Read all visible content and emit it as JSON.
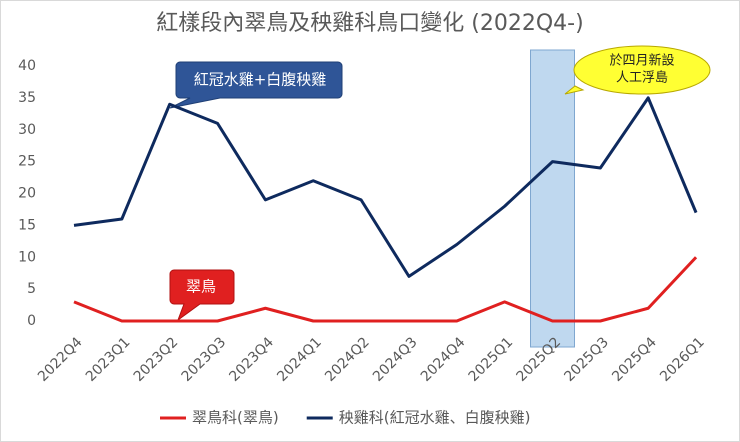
{
  "chart_data": {
    "type": "line",
    "title": "紅樣段內翠鳥及秧雞科鳥口變化 (2022Q4-)",
    "categories": [
      "2022Q4",
      "2023Q1",
      "2023Q2",
      "2023Q3",
      "2023Q4",
      "2024Q1",
      "2024Q2",
      "2024Q3",
      "2024Q4",
      "2025Q1",
      "2025Q2",
      "2025Q3",
      "2025Q4",
      "2026Q1"
    ],
    "series": [
      {
        "name": "翠鳥科(翠鳥)",
        "color": "#e02020",
        "values": [
          3,
          0,
          0,
          0,
          2,
          0,
          0,
          0,
          0,
          3,
          0,
          0,
          2,
          10
        ]
      },
      {
        "name": "秧雞科(紅冠水雞、白腹秧雞)",
        "color": "#0e2a5e",
        "values": [
          15,
          16,
          34,
          31,
          19,
          22,
          19,
          7,
          12,
          18,
          25,
          24,
          35,
          17
        ]
      }
    ],
    "ylim": [
      0,
      40
    ],
    "yticks": [
      0,
      5,
      10,
      15,
      20,
      25,
      30,
      35,
      40
    ],
    "grid": false,
    "legend": "bottom",
    "annotations": [
      {
        "lines": [
          "紅冠水雞+白腹秧雞"
        ]
      },
      {
        "lines": [
          "翠鳥"
        ]
      },
      {
        "lines": [
          "於四月新設",
          "人工浮島"
        ]
      }
    ]
  }
}
